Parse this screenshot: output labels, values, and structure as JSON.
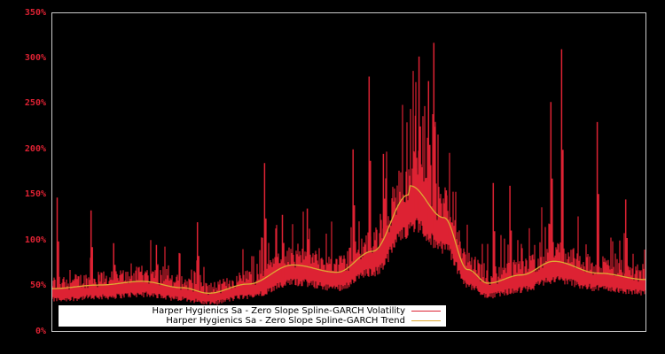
{
  "chart_data": {
    "type": "line",
    "title": "",
    "xlabel": "",
    "ylabel": "",
    "ylim": [
      0,
      350
    ],
    "y_ticks": [
      "0%",
      "50%",
      "100%",
      "150%",
      "200%",
      "250%",
      "300%",
      "350%"
    ],
    "y_tick_values": [
      0,
      50,
      100,
      150,
      200,
      250,
      300,
      350
    ],
    "grid": false,
    "legend_position": "lower-left inside",
    "colors": {
      "background": "#000000",
      "frame": "#cccccc",
      "tick_labels": "#dd2233",
      "volatility": "#dd2233",
      "trend": "#ddaa33"
    },
    "series": [
      {
        "name": "Harper Hygienics Sa - Zero Slope Spline-GARCH Volatility",
        "style": "red spiky series around trend",
        "notable_spikes": [
          {
            "x_frac": 0.009,
            "value": 147
          },
          {
            "x_frac": 0.066,
            "value": 133
          },
          {
            "x_frac": 0.104,
            "value": 97
          },
          {
            "x_frac": 0.176,
            "value": 95
          },
          {
            "x_frac": 0.245,
            "value": 120
          },
          {
            "x_frac": 0.358,
            "value": 185
          },
          {
            "x_frac": 0.388,
            "value": 128
          },
          {
            "x_frac": 0.43,
            "value": 135
          },
          {
            "x_frac": 0.507,
            "value": 200
          },
          {
            "x_frac": 0.534,
            "value": 280
          },
          {
            "x_frac": 0.558,
            "value": 195
          },
          {
            "x_frac": 0.612,
            "value": 237
          },
          {
            "x_frac": 0.618,
            "value": 302
          },
          {
            "x_frac": 0.634,
            "value": 275
          },
          {
            "x_frac": 0.643,
            "value": 317
          },
          {
            "x_frac": 0.664,
            "value": 155
          },
          {
            "x_frac": 0.743,
            "value": 163
          },
          {
            "x_frac": 0.771,
            "value": 160
          },
          {
            "x_frac": 0.84,
            "value": 252
          },
          {
            "x_frac": 0.858,
            "value": 310
          },
          {
            "x_frac": 0.918,
            "value": 230
          },
          {
            "x_frac": 0.966,
            "value": 145
          }
        ]
      },
      {
        "name": "Harper Hygienics Sa - Zero Slope Spline-GARCH Trend",
        "style": "smooth spline",
        "points": [
          {
            "x_frac": 0.0,
            "value": 47
          },
          {
            "x_frac": 0.08,
            "value": 51
          },
          {
            "x_frac": 0.152,
            "value": 55
          },
          {
            "x_frac": 0.22,
            "value": 48
          },
          {
            "x_frac": 0.264,
            "value": 42
          },
          {
            "x_frac": 0.33,
            "value": 52
          },
          {
            "x_frac": 0.406,
            "value": 73
          },
          {
            "x_frac": 0.48,
            "value": 65
          },
          {
            "x_frac": 0.54,
            "value": 88
          },
          {
            "x_frac": 0.6,
            "value": 150
          },
          {
            "x_frac": 0.603,
            "value": 160
          },
          {
            "x_frac": 0.66,
            "value": 125
          },
          {
            "x_frac": 0.7,
            "value": 68
          },
          {
            "x_frac": 0.734,
            "value": 53
          },
          {
            "x_frac": 0.79,
            "value": 62
          },
          {
            "x_frac": 0.845,
            "value": 77
          },
          {
            "x_frac": 0.92,
            "value": 64
          },
          {
            "x_frac": 1.0,
            "value": 57
          }
        ]
      }
    ]
  },
  "legend": {
    "items": [
      {
        "label": "Harper Hygienics Sa - Zero Slope Spline-GARCH Volatility",
        "color": "#dd2233"
      },
      {
        "label": "Harper Hygienics Sa - Zero Slope Spline-GARCH Trend",
        "color": "#ddaa33"
      }
    ]
  }
}
